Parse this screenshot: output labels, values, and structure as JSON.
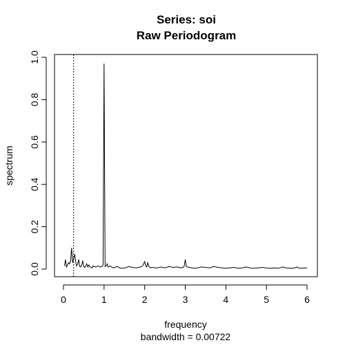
{
  "chart_data": {
    "type": "line",
    "title": "Series: soi",
    "subtitle": "Raw Periodogram",
    "xlabel": "frequency",
    "xlabel_sub": "bandwidth = 0.00722",
    "ylabel": "spectrum",
    "xlim": [
      0,
      6
    ],
    "ylim": [
      0,
      1.0
    ],
    "x_ticks": [
      0,
      1,
      2,
      3,
      4,
      5,
      6
    ],
    "x_tick_labels": [
      "0",
      "1",
      "2",
      "3",
      "4",
      "5",
      "6"
    ],
    "y_ticks": [
      0,
      0.2,
      0.4,
      0.6,
      0.8,
      1.0
    ],
    "y_tick_labels": [
      "0.0",
      "0.2",
      "0.4",
      "0.6",
      "0.8",
      "1.0"
    ],
    "reference_line": {
      "x": 0.25,
      "style": "dotted"
    },
    "series": [
      {
        "name": "soi",
        "x": [
          0.025,
          0.05,
          0.075,
          0.1,
          0.125,
          0.15,
          0.175,
          0.2,
          0.225,
          0.25,
          0.275,
          0.3,
          0.325,
          0.35,
          0.375,
          0.4,
          0.425,
          0.45,
          0.475,
          0.5,
          0.525,
          0.55,
          0.575,
          0.6,
          0.625,
          0.65,
          0.675,
          0.7,
          0.725,
          0.75,
          0.8,
          0.85,
          0.9,
          0.95,
          0.975,
          1.0,
          1.025,
          1.05,
          1.075,
          1.1,
          1.15,
          1.2,
          1.25,
          1.3,
          1.35,
          1.4,
          1.5,
          1.6,
          1.7,
          1.8,
          1.9,
          1.95,
          2.0,
          2.025,
          2.05,
          2.075,
          2.1,
          2.15,
          2.2,
          2.3,
          2.4,
          2.5,
          2.6,
          2.7,
          2.8,
          2.9,
          2.95,
          2.975,
          3.0,
          3.025,
          3.05,
          3.1,
          3.2,
          3.3,
          3.4,
          3.5,
          3.6,
          3.7,
          3.8,
          3.9,
          4.0,
          4.1,
          4.2,
          4.3,
          4.4,
          4.5,
          4.6,
          4.7,
          4.8,
          4.9,
          5.0,
          5.1,
          5.2,
          5.3,
          5.4,
          5.5,
          5.6,
          5.7,
          5.75,
          5.8,
          5.9,
          6.0
        ],
        "y": [
          0.015,
          0.045,
          0.01,
          0.02,
          0.03,
          0.025,
          0.04,
          0.1,
          0.03,
          0.05,
          0.07,
          0.035,
          0.015,
          0.025,
          0.045,
          0.012,
          0.01,
          0.02,
          0.04,
          0.012,
          0.008,
          0.015,
          0.025,
          0.01,
          0.02,
          0.012,
          0.008,
          0.005,
          0.015,
          0.012,
          0.01,
          0.015,
          0.01,
          0.012,
          0.02,
          0.97,
          0.012,
          0.015,
          0.025,
          0.01,
          0.015,
          0.008,
          0.006,
          0.012,
          0.01,
          0.005,
          0.004,
          0.012,
          0.008,
          0.006,
          0.01,
          0.015,
          0.035,
          0.015,
          0.01,
          0.03,
          0.012,
          0.006,
          0.008,
          0.005,
          0.01,
          0.006,
          0.012,
          0.008,
          0.01,
          0.006,
          0.008,
          0.015,
          0.045,
          0.012,
          0.01,
          0.008,
          0.004,
          0.006,
          0.01,
          0.008,
          0.006,
          0.012,
          0.008,
          0.006,
          0.004,
          0.006,
          0.008,
          0.004,
          0.006,
          0.01,
          0.005,
          0.004,
          0.006,
          0.008,
          0.005,
          0.004,
          0.006,
          0.004,
          0.01,
          0.005,
          0.004,
          0.006,
          0.01,
          0.004,
          0.005,
          0.006
        ]
      }
    ]
  }
}
